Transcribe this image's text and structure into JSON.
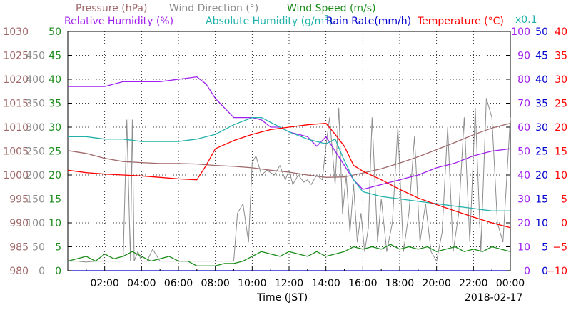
{
  "chart_data": {
    "type": "line",
    "date_label": "2018-02-17",
    "xlabel": "Time (JST)",
    "x_ticks": [
      "02:00",
      "04:00",
      "06:00",
      "08:00",
      "10:00",
      "12:00",
      "14:00",
      "16:00",
      "18:00",
      "20:00",
      "22:00",
      "00:00"
    ],
    "x_range_hours": [
      0,
      24
    ],
    "legend": {
      "row1": [
        {
          "label": "Pressure (hPa)",
          "color": "#a0686a"
        },
        {
          "label": "Wind Direction (°)",
          "color": "#8c8c8c"
        },
        {
          "label": "Wind Speed (m/s)",
          "color": "#1a8c1a"
        }
      ],
      "row2": [
        {
          "label": "Relative Humidity (%)",
          "color": "#a020f0"
        },
        {
          "label_main": "Absolute Humidity (g/m",
          "label_sup": "3",
          "label_end": ")",
          "color": "#20b2aa"
        },
        {
          "label": "Rain Rate(mm/h)",
          "color": "#0000cd"
        },
        {
          "label": "Temperature (°C)",
          "color": "#ff0000"
        }
      ],
      "rain_scale_note": "x0.1"
    },
    "axes": {
      "pressure": {
        "ticks": [
          "1030",
          "1025",
          "1020",
          "1015",
          "1010",
          "1005",
          "1000",
          "995",
          "990",
          "985",
          "980"
        ],
        "ylim": [
          980,
          1030
        ],
        "color": "#a0686a"
      },
      "wind_direction": {
        "ticks": [
          "450",
          "400",
          "350",
          "300",
          "250",
          "200",
          "150",
          "100",
          "50",
          "0"
        ],
        "ylim": [
          0,
          500
        ],
        "color": "#8c8c8c"
      },
      "wind_speed": {
        "ticks": [
          "50",
          "45",
          "40",
          "35",
          "30",
          "25",
          "20",
          "15",
          "10",
          "5",
          "0"
        ],
        "ylim": [
          0,
          50
        ],
        "color": "#1a8c1a"
      },
      "humidity": {
        "ticks": [
          "100",
          "90",
          "80",
          "70",
          "60",
          "50",
          "40",
          "30",
          "20",
          "10",
          "0"
        ],
        "ylim": [
          0,
          100
        ],
        "color": "#a020f0"
      },
      "rain_rate": {
        "ticks": [
          "50",
          "45",
          "40",
          "35",
          "30",
          "25",
          "20",
          "15",
          "10",
          "5",
          "0"
        ],
        "ylim": [
          0,
          50
        ],
        "color": "#0000cd"
      },
      "temperature": {
        "ticks": [
          "40",
          "35",
          "30",
          "25",
          "20",
          "15",
          "10",
          "5",
          "0",
          "−5",
          "−10"
        ],
        "ylim": [
          -10,
          40
        ],
        "color": "#ff0000"
      }
    },
    "series": [
      {
        "name": "Pressure (hPa)",
        "axis": "pressure",
        "color": "#a0686a",
        "x": [
          0,
          1,
          2,
          3,
          4,
          5,
          6,
          7,
          8,
          9,
          10,
          11,
          12,
          13,
          14,
          15,
          16,
          17,
          18,
          19,
          20,
          21,
          22,
          23,
          24
        ],
        "y": [
          1005.1,
          1004.5,
          1003.5,
          1002.8,
          1002.6,
          1002.4,
          1002.4,
          1002.3,
          1002.0,
          1001.8,
          1001.5,
          1001.0,
          1000.6,
          1000.0,
          999.5,
          999.6,
          1000.4,
          1001.3,
          1002.5,
          1003.8,
          1005.3,
          1006.8,
          1008.4,
          1009.8,
          1010.8
        ]
      },
      {
        "name": "Wind Direction (°)",
        "axis": "wind_direction",
        "color": "#8c8c8c",
        "x": [
          0,
          0.5,
          1,
          1.5,
          2,
          2.5,
          3,
          3.2,
          3.4,
          3.5,
          3.6,
          3.8,
          4,
          4.3,
          4.6,
          5,
          5.5,
          6,
          6.5,
          7,
          7.5,
          8,
          8.5,
          9,
          9.2,
          9.5,
          9.8,
          10,
          10.2,
          10.5,
          10.8,
          11,
          11.2,
          11.5,
          11.8,
          12,
          12.2,
          12.5,
          12.8,
          13,
          13.2,
          13.5,
          13.8,
          14,
          14.2,
          14.5,
          14.7,
          14.9,
          15.1,
          15.3,
          15.5,
          15.7,
          15.9,
          16.1,
          16.3,
          16.5,
          16.8,
          17,
          17.3,
          17.6,
          17.9,
          18.2,
          18.5,
          18.8,
          19.1,
          19.4,
          19.7,
          20,
          20.3,
          20.6,
          20.9,
          21.2,
          21.5,
          21.8,
          22.1,
          22.4,
          22.7,
          23,
          23.3,
          23.6,
          24
        ],
        "y": [
          20,
          20,
          18,
          20,
          20,
          20,
          20,
          315,
          20,
          315,
          20,
          40,
          20,
          20,
          45,
          20,
          20,
          20,
          20,
          20,
          20,
          20,
          20,
          20,
          120,
          140,
          60,
          225,
          240,
          200,
          210,
          205,
          200,
          220,
          190,
          210,
          180,
          200,
          185,
          190,
          180,
          200,
          190,
          260,
          320,
          180,
          340,
          120,
          200,
          80,
          180,
          60,
          120,
          40,
          90,
          320,
          60,
          150,
          40,
          100,
          300,
          40,
          120,
          280,
          60,
          140,
          40,
          20,
          80,
          300,
          40,
          120,
          320,
          60,
          340,
          40,
          360,
          320,
          100,
          60,
          320
        ]
      },
      {
        "name": "Wind Speed (m/s)",
        "axis": "wind_speed",
        "color": "#1a8c1a",
        "x": [
          0,
          0.5,
          1,
          1.5,
          2,
          2.5,
          3,
          3.5,
          4,
          4.5,
          5,
          5.5,
          6,
          6.5,
          7,
          7.5,
          8,
          8.5,
          9,
          9.5,
          10,
          10.5,
          11,
          11.5,
          12,
          12.5,
          13,
          13.5,
          14,
          14.5,
          15,
          15.5,
          16,
          16.5,
          17,
          17.5,
          18,
          18.5,
          19,
          19.5,
          20,
          20.5,
          21,
          21.5,
          22,
          22.5,
          23,
          23.5,
          24
        ],
        "y": [
          2,
          2.5,
          3,
          2,
          3.5,
          2.5,
          3,
          4,
          3,
          2,
          2.5,
          3,
          2,
          2,
          1,
          1,
          1,
          1.5,
          1.5,
          2,
          3,
          4,
          3.5,
          3,
          4,
          3.5,
          3,
          4,
          3,
          3.5,
          4,
          5,
          4.5,
          5,
          4.5,
          5.5,
          4.5,
          5,
          4.5,
          5,
          4,
          4.5,
          5,
          4,
          4.5,
          4,
          5,
          4.5,
          4
        ]
      },
      {
        "name": "Relative Humidity (%)",
        "axis": "humidity",
        "color": "#a020f0",
        "x": [
          0,
          1,
          2,
          3,
          3.5,
          4,
          5,
          6,
          7,
          7.5,
          8,
          8.5,
          9,
          10,
          10.5,
          11,
          11.5,
          12,
          13,
          13.5,
          14,
          14.5,
          15,
          15.5,
          16,
          17,
          18,
          19,
          20,
          21,
          22,
          23,
          24
        ],
        "y": [
          77,
          77,
          77,
          79,
          79,
          79,
          79,
          80,
          81,
          78,
          72,
          68,
          64,
          64,
          63,
          60,
          60,
          58,
          56,
          52,
          56,
          50,
          44,
          38,
          34,
          36,
          38,
          40,
          43,
          45,
          48,
          50,
          51
        ]
      },
      {
        "name": "Absolute Humidity",
        "axis": "humidity",
        "color": "#20b2aa",
        "x": [
          0,
          1,
          2,
          3,
          4,
          5,
          6,
          7,
          8,
          9,
          10,
          10.5,
          11,
          12,
          13,
          14,
          14.5,
          15,
          15.5,
          16,
          17,
          18,
          19,
          20,
          21,
          22,
          23,
          24
        ],
        "y": [
          56,
          56,
          55,
          55,
          54,
          54,
          54,
          55,
          57,
          61,
          64,
          64,
          62,
          58,
          55,
          53,
          55,
          46,
          38,
          33,
          31,
          30,
          29,
          28,
          27,
          26,
          25,
          25
        ]
      },
      {
        "name": "Rain Rate(mm/h)",
        "axis": "rain_rate",
        "color": "#0000cd",
        "x": [
          0,
          24
        ],
        "y": [
          0,
          0
        ]
      },
      {
        "name": "Temperature (°C)",
        "axis": "temperature",
        "color": "#ff0000",
        "x": [
          0,
          1,
          2,
          3,
          4,
          5,
          6,
          7,
          7.5,
          8,
          9,
          10,
          11,
          12,
          13,
          14,
          14.5,
          15,
          15.5,
          16,
          17,
          18,
          19,
          20,
          21,
          22,
          23,
          24
        ],
        "y": [
          11,
          10.5,
          10.2,
          10,
          9.8,
          9.5,
          9.2,
          9,
          12,
          15.5,
          17.2,
          18.5,
          19.5,
          20,
          20.5,
          20.8,
          18.5,
          16,
          12,
          10.8,
          9,
          7,
          5.2,
          3.8,
          2.5,
          1.2,
          0,
          -1
        ]
      }
    ]
  }
}
